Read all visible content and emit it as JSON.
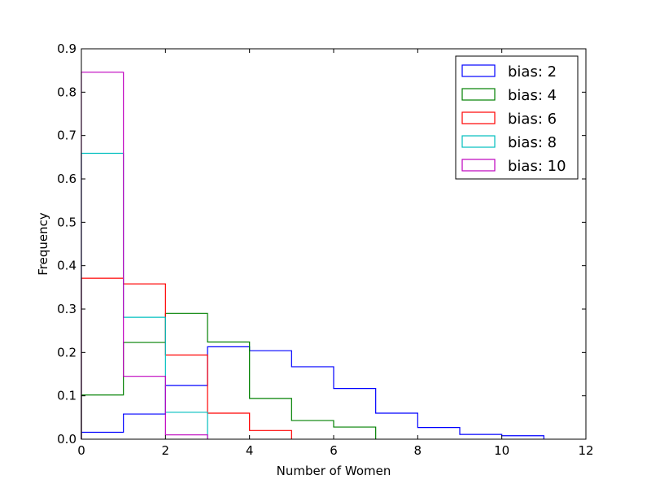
{
  "chart_data": {
    "type": "step-histogram",
    "title": "",
    "xlabel": "Number of Women",
    "ylabel": "Frequency",
    "xlim": [
      0,
      12
    ],
    "ylim": [
      0,
      0.9
    ],
    "xticks": [
      "0",
      "2",
      "4",
      "6",
      "8",
      "10",
      "12"
    ],
    "yticks": [
      "0.0",
      "0.1",
      "0.2",
      "0.3",
      "0.4",
      "0.5",
      "0.6",
      "0.7",
      "0.8",
      "0.9"
    ],
    "grid": false,
    "legend_position": "top-right",
    "bin_width": 1,
    "series": [
      {
        "name": "bias: 2",
        "color": "#0000ff",
        "values": [
          0.016,
          0.058,
          0.124,
          0.213,
          0.204,
          0.167,
          0.117,
          0.06,
          0.027,
          0.011,
          0.008
        ]
      },
      {
        "name": "bias: 4",
        "color": "#008000",
        "values": [
          0.102,
          0.223,
          0.29,
          0.224,
          0.094,
          0.043,
          0.028
        ]
      },
      {
        "name": "bias: 6",
        "color": "#ff0000",
        "values": [
          0.371,
          0.358,
          0.194,
          0.06,
          0.02
        ]
      },
      {
        "name": "bias: 8",
        "color": "#00bfbf",
        "values": [
          0.659,
          0.281,
          0.062
        ]
      },
      {
        "name": "bias: 10",
        "color": "#bf00bf",
        "values": [
          0.846,
          0.145,
          0.01
        ]
      }
    ]
  }
}
